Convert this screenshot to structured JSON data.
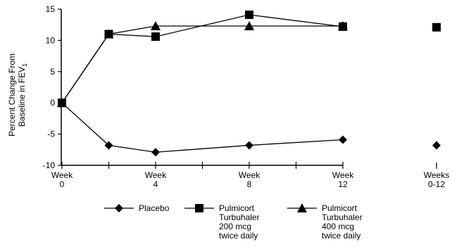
{
  "chart_data": {
    "type": "line",
    "ylabel": [
      "Percent Change From",
      "Baseline in FEV",
      "1"
    ],
    "ylim": [
      -10,
      15
    ],
    "yticks": [
      "15",
      "10",
      "5",
      "0",
      "-5",
      "-10"
    ],
    "ytick_values": [
      15,
      10,
      5,
      0,
      -5,
      -10
    ],
    "xlim": [
      0,
      15
    ],
    "xticks": [
      {
        "x": 0,
        "label": [
          "Week",
          "0"
        ]
      },
      {
        "x": 4,
        "label": [
          "Week",
          "4"
        ]
      },
      {
        "x": 8,
        "label": [
          "Week",
          "8"
        ]
      },
      {
        "x": 12,
        "label": [
          "Week",
          "12"
        ]
      }
    ],
    "minor_ticks": [
      2,
      6,
      10
    ],
    "summary_label": [
      "Weeks",
      "0-12"
    ],
    "series": [
      {
        "name": [
          "Placebo"
        ],
        "marker": "diamond",
        "x": [
          0,
          2,
          4,
          8,
          12
        ],
        "values": [
          0,
          -6.8,
          -7.9,
          -6.8,
          -5.9
        ],
        "summary": -6.8
      },
      {
        "name": [
          "Pulmicort",
          "Turbuhaler",
          "200 mcg",
          "twice daily"
        ],
        "marker": "square",
        "x": [
          0,
          2,
          4,
          8,
          12
        ],
        "values": [
          0,
          11.0,
          10.6,
          14.1,
          12.2
        ],
        "summary": 12.1
      },
      {
        "name": [
          "Pulmicort",
          "Turbuhaler",
          "400 mcg",
          "twice daily"
        ],
        "marker": "triangle",
        "x": [
          0,
          2,
          4,
          8,
          12
        ],
        "values": [
          0,
          11.0,
          12.3,
          12.3,
          12.3
        ],
        "summary": null
      }
    ],
    "legend_position": "bottom"
  }
}
